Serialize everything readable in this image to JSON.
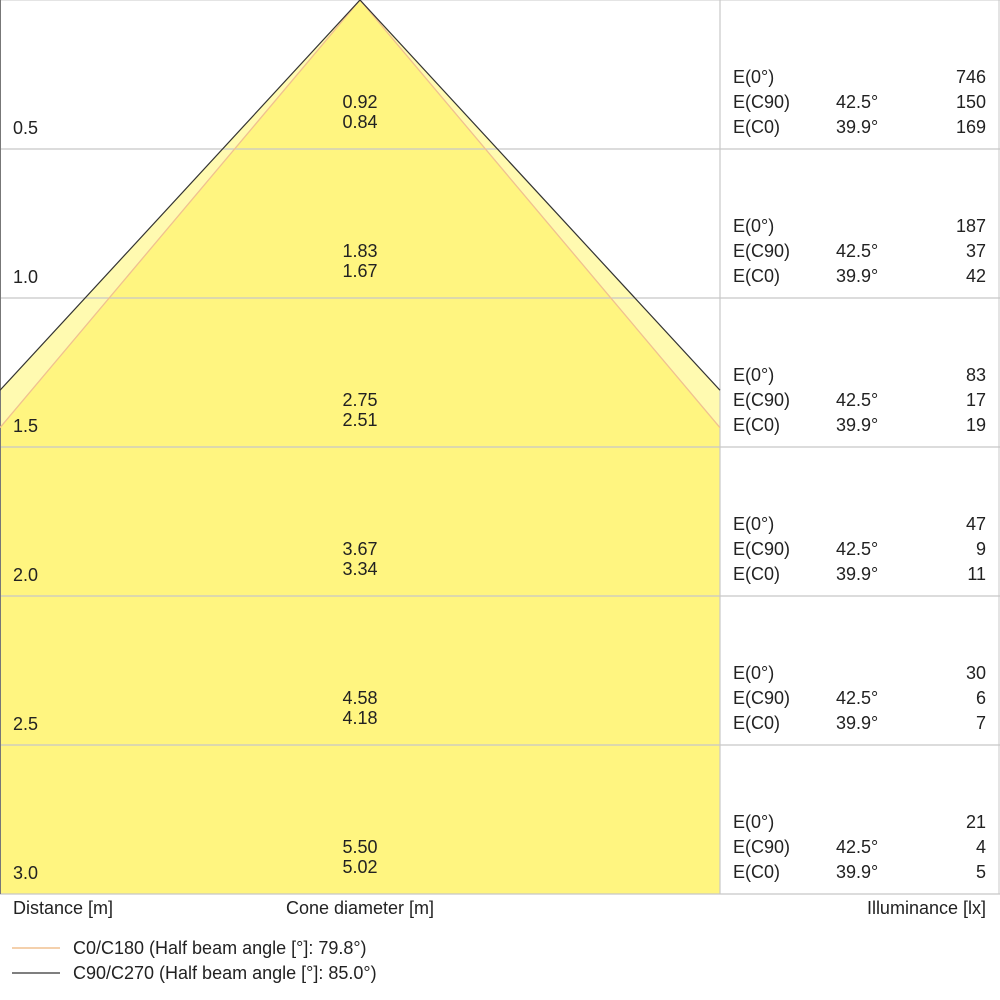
{
  "chart_data": {
    "type": "cone-diagram",
    "x_label": "Distance [m]",
    "center_label": "Cone diameter [m]",
    "right_label": "Illuminance [lx]",
    "distances": [
      "0.5",
      "1.0",
      "1.5",
      "2.0",
      "2.5",
      "3.0"
    ],
    "distance_values": [
      0.5,
      1.0,
      1.5,
      2.0,
      2.5,
      3.0
    ],
    "half_angle_c90": 42.5,
    "half_angle_c0": 39.9,
    "diameters_c90": [
      "0.92",
      "1.83",
      "2.75",
      "3.67",
      "4.58",
      "5.50"
    ],
    "diameters_c0": [
      "0.84",
      "1.67",
      "2.51",
      "3.34",
      "4.18",
      "5.02"
    ],
    "row_labels": [
      "E(0°)",
      "E(C90)",
      "E(C0)"
    ],
    "angle_c90_label": "42.5°",
    "angle_c0_label": "39.9°",
    "e0": [
      "746",
      "187",
      "83",
      "47",
      "30",
      "21"
    ],
    "ec90": [
      "150",
      "37",
      "17",
      "9",
      "6",
      "4"
    ],
    "ec0": [
      "169",
      "42",
      "19",
      "11",
      "7",
      "5"
    ],
    "legend": [
      {
        "label": "C0/C180 (Half beam angle [°]: 79.8°)",
        "color": "#f0c090"
      },
      {
        "label": "C90/C270 (Half beam angle [°]: 85.0°)",
        "color": "#555555"
      }
    ],
    "colors": {
      "fill_c0": "#fff580",
      "fill_c90": "#fffab0",
      "grid": "#c8c8c8"
    }
  }
}
